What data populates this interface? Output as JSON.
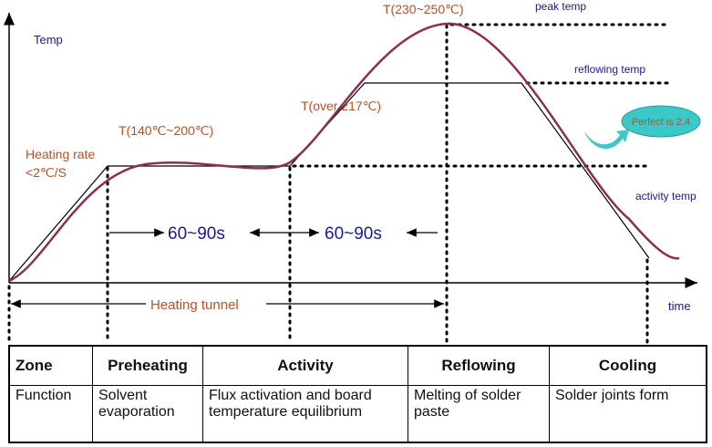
{
  "diagram": {
    "y_axis_label": "Temp",
    "x_axis_label": "time",
    "heating_rate": [
      "Heating rate",
      "<2℃/S"
    ],
    "preheat_temp": "T(140℃~200℃)",
    "over_temp": "T(over 217℃)",
    "peak_range": "T(230~250℃)",
    "peak_temp": "peak temp",
    "reflow_temp": "reflowing temp",
    "activity_temp": "activity temp",
    "duration1": "60~90s",
    "duration2": "60~90s",
    "heating_tunnel": "Heating tunnel",
    "callout": "Perfect is 2.4",
    "colors": {
      "curve": "#8b2f55",
      "label": "#b5512a",
      "blue": "#1a1a8c",
      "callout": "#3cc8c8"
    }
  },
  "table": {
    "headers": [
      "Zone",
      "Preheating",
      "Activity",
      "Reflowing",
      "Cooling"
    ],
    "row": [
      "Function",
      "Solvent evaporation",
      "Flux activation and board temperature equilibrium",
      "Melting of solder paste",
      "Solder joints  form"
    ]
  }
}
